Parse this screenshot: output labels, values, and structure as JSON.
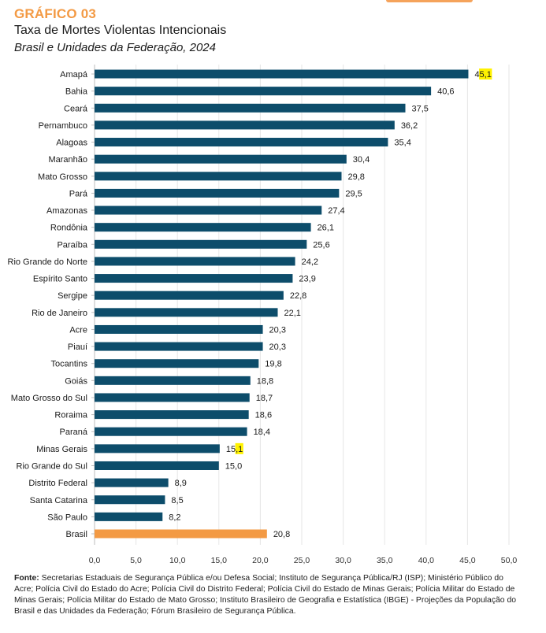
{
  "header": {
    "kicker": "GRÁFICO 03",
    "title": "Taxa de Mortes Violentas Intencionais",
    "subtitle": "Brasil e Unidades da Federação, 2024"
  },
  "colors": {
    "bar_state": "#0d4d6b",
    "bar_brasil": "#f39a44",
    "highlight": "#fff200",
    "kicker": "#f39a44"
  },
  "chart_data": {
    "type": "bar",
    "orientation": "horizontal",
    "categories": [
      "Amapá",
      "Bahia",
      "Ceará",
      "Pernambuco",
      "Alagoas",
      "Maranhão",
      "Mato Grosso",
      "Pará",
      "Amazonas",
      "Rondônia",
      "Paraíba",
      "Rio Grande do Norte",
      "Espírito Santo",
      "Sergipe",
      "Rio de Janeiro",
      "Acre",
      "Piauí",
      "Tocantins",
      "Goiás",
      "Mato Grosso do Sul",
      "Roraima",
      "Paraná",
      "Minas Gerais",
      "Rio Grande do Sul",
      "Distrito Federal",
      "Santa Catarina",
      "São Paulo",
      "Brasil"
    ],
    "values": [
      45.1,
      40.6,
      37.5,
      36.2,
      35.4,
      30.4,
      29.8,
      29.5,
      27.4,
      26.1,
      25.6,
      24.2,
      23.9,
      22.8,
      22.1,
      20.3,
      20.3,
      19.8,
      18.8,
      18.7,
      18.6,
      18.4,
      15.1,
      15.0,
      8.9,
      8.5,
      8.2,
      20.8
    ],
    "value_labels": [
      "45,1",
      "40,6",
      "37,5",
      "36,2",
      "35,4",
      "30,4",
      "29,8",
      "29,5",
      "27,4",
      "26,1",
      "25,6",
      "24,2",
      "23,9",
      "22,8",
      "22,1",
      "20,3",
      "20,3",
      "19,8",
      "18,8",
      "18,7",
      "18,6",
      "18,4",
      "15,1",
      "15,0",
      "8,9",
      "8,5",
      "8,2",
      "20,8"
    ],
    "highlighted_label_digits": [
      {
        "category": "Amapá",
        "plain": "4",
        "marked": "5,1"
      },
      {
        "category": "Minas Gerais",
        "plain": "15",
        "marked": ",1"
      }
    ],
    "xlim": [
      0,
      50
    ],
    "xticks": [
      0,
      5,
      10,
      15,
      20,
      25,
      30,
      35,
      40,
      45,
      50
    ],
    "xtick_labels": [
      "0,0",
      "5,0",
      "10,0",
      "15,0",
      "20,0",
      "25,0",
      "30,0",
      "35,0",
      "40,0",
      "45,0",
      "50,0"
    ],
    "grid": "vertical",
    "xlabel": "",
    "ylabel": ""
  },
  "source": {
    "label": "Fonte:",
    "text": " Secretarias Estaduais de Segurança Pública e/ou Defesa Social; Instituto de Segurança Pública/RJ (ISP); Ministério Público do Acre; Polícia Civil do Estado do Acre; Polícia Civil do Distrito Federal; Polícia Civil do Estado de Minas Gerais; Polícia Militar do Estado de Minas Gerais; Polícia Militar do Estado de Mato Grosso; Instituto Brasileiro de Geografia e Estatística (IBGE) - Projeções da População do Brasil e das Unidades da Federação; Fórum Brasileiro de Segurança Pública."
  }
}
